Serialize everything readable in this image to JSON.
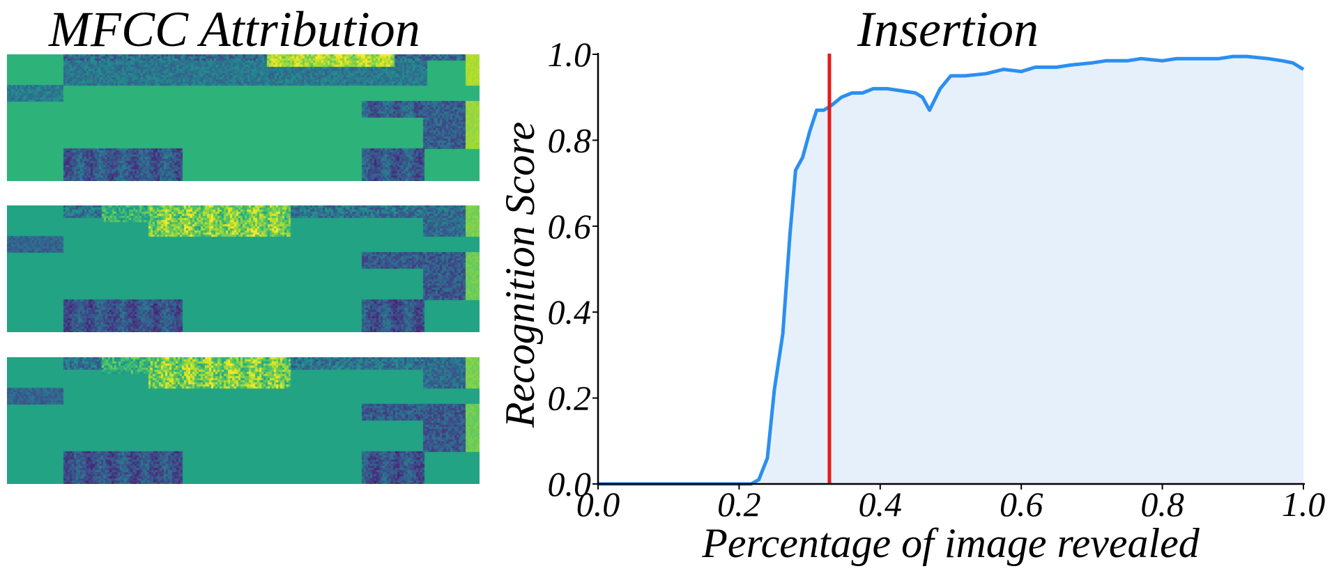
{
  "left_panel": {
    "title": "MFCC Attribution",
    "heatmaps": [
      {
        "name": "attribution-1",
        "background": "#2db37a"
      },
      {
        "name": "attribution-2",
        "background": "#22a384"
      },
      {
        "name": "attribution-3",
        "background": "#22a384"
      }
    ],
    "colormap": "viridis"
  },
  "chart_data": {
    "type": "area",
    "title": "Insertion",
    "xlabel": "Percentage of image revealed",
    "ylabel": "Recognition Score",
    "xlim": [
      0.0,
      1.0
    ],
    "ylim": [
      0.0,
      1.0
    ],
    "xticks": [
      "0.0",
      "0.2",
      "0.4",
      "0.6",
      "0.8",
      "1.0"
    ],
    "yticks": [
      "0.0",
      "0.2",
      "0.4",
      "0.6",
      "0.8",
      "1.0"
    ],
    "grid": false,
    "series": [
      {
        "line_color": "#2b8ff0",
        "fill_color": "#e6f0fb",
        "x": [
          0.0,
          0.05,
          0.1,
          0.15,
          0.2,
          0.217,
          0.228,
          0.24,
          0.25,
          0.262,
          0.272,
          0.28,
          0.29,
          0.3,
          0.31,
          0.32,
          0.33,
          0.345,
          0.36,
          0.375,
          0.39,
          0.41,
          0.43,
          0.45,
          0.46,
          0.47,
          0.485,
          0.5,
          0.52,
          0.55,
          0.575,
          0.6,
          0.62,
          0.65,
          0.67,
          0.7,
          0.72,
          0.75,
          0.77,
          0.8,
          0.82,
          0.85,
          0.88,
          0.9,
          0.92,
          0.95,
          0.97,
          0.985,
          1.0
        ],
        "y": [
          0.0,
          0.0,
          0.0,
          0.0,
          0.0,
          0.0,
          0.01,
          0.06,
          0.22,
          0.35,
          0.58,
          0.73,
          0.76,
          0.82,
          0.87,
          0.87,
          0.88,
          0.9,
          0.91,
          0.91,
          0.92,
          0.92,
          0.915,
          0.91,
          0.9,
          0.87,
          0.92,
          0.95,
          0.95,
          0.955,
          0.965,
          0.96,
          0.97,
          0.97,
          0.975,
          0.98,
          0.985,
          0.985,
          0.99,
          0.985,
          0.99,
          0.99,
          0.99,
          0.995,
          0.995,
          0.99,
          0.985,
          0.98,
          0.965
        ]
      }
    ],
    "vline": {
      "x": 0.328,
      "color": "#e61a1a"
    }
  }
}
